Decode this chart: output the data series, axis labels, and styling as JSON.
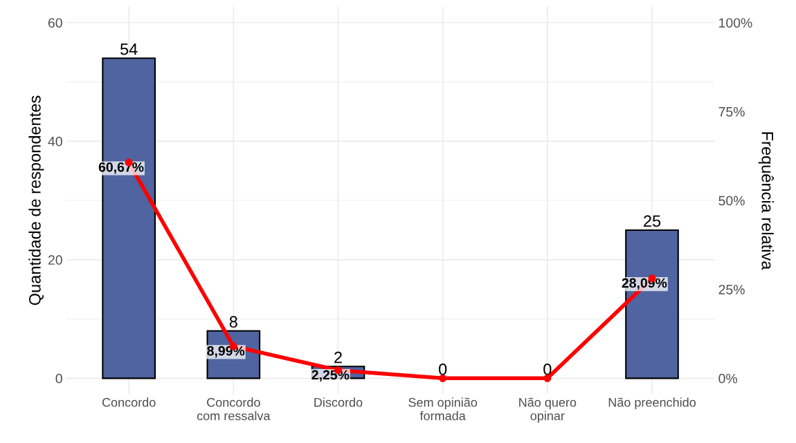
{
  "chart_data": {
    "type": "bar",
    "ylabel": "Quantidade de respondentes",
    "y2label": "Frequência relativa",
    "categories": [
      "Concordo",
      "Concordo\ncom ressalva",
      "Discordo",
      "Sem opinião\nformada",
      "Não quero\nopinar",
      "Não preenchido"
    ],
    "series": [
      {
        "color": "#4f64a0",
        "values": [
          54,
          8,
          2,
          0,
          0,
          25
        ],
        "data_labels": true
      },
      {
        "type": "line",
        "axis": "y2",
        "color": "#ff0000",
        "marker": "circle",
        "line_style": "solid",
        "values": [
          60.67,
          8.99,
          2.25,
          0,
          0,
          28.09
        ],
        "value_labels": [
          "60,67%",
          "8,99%",
          "2,25%",
          null,
          null,
          "28,09%"
        ]
      }
    ],
    "ylim": [
      -2.7,
      62.7
    ],
    "yticks": [
      0,
      20,
      40,
      60
    ],
    "y2lim": [
      -4.5,
      104.5
    ],
    "y2ticks": [
      {
        "value": 0,
        "label": "0%"
      },
      {
        "value": 25,
        "label": "25%"
      },
      {
        "value": 50,
        "label": "50%"
      },
      {
        "value": 75,
        "label": "75%"
      },
      {
        "value": 100,
        "label": "100%"
      }
    ],
    "grid": true,
    "legend": false
  }
}
